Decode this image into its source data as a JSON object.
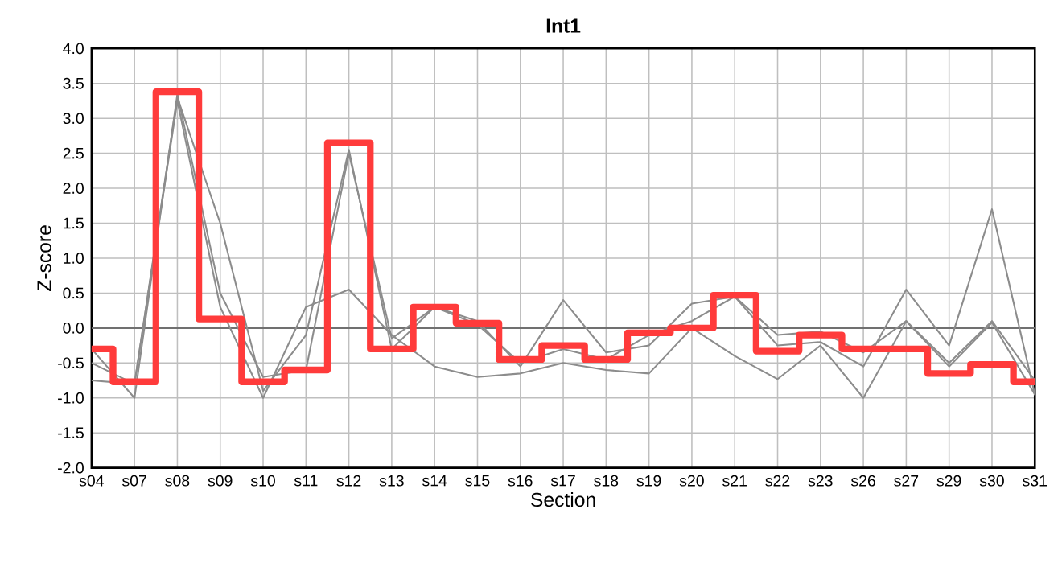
{
  "chart_data": {
    "type": "line",
    "title": "Int1",
    "xlabel": "Section",
    "ylabel": "Z-score",
    "categories": [
      "s04",
      "s07",
      "s08",
      "s09",
      "s10",
      "s11",
      "s12",
      "s13",
      "s14",
      "s15",
      "s16",
      "s17",
      "s18",
      "s19",
      "s20",
      "s21",
      "s22",
      "s23",
      "s26",
      "s27",
      "s29",
      "s30",
      "s31"
    ],
    "series": [
      {
        "color": "#8c8c8c",
        "values": [
          -0.5,
          -0.8,
          3.3,
          1.5,
          -0.9,
          -0.1,
          2.55,
          -0.3,
          0.3,
          0.1,
          -0.55,
          0.4,
          -0.35,
          -0.25,
          0.35,
          0.45,
          -0.25,
          -0.2,
          -0.55,
          0.55,
          -0.25,
          1.7,
          -0.95
        ]
      },
      {
        "color": "#8c8c8c",
        "values": [
          -0.3,
          -1.0,
          3.35,
          0.5,
          -0.7,
          -0.6,
          2.5,
          -0.15,
          0.3,
          0.05,
          -0.5,
          -0.3,
          -0.45,
          -0.1,
          0.1,
          0.45,
          -0.1,
          -0.05,
          -0.35,
          0.1,
          -0.5,
          0.1,
          -0.75
        ]
      },
      {
        "color": "#8c8c8c",
        "values": [
          -0.75,
          -0.8,
          3.25,
          0.3,
          -1.0,
          0.3,
          0.55,
          -0.1,
          -0.55,
          -0.7,
          -0.65,
          -0.5,
          -0.6,
          -0.65,
          0.0,
          -0.4,
          -0.73,
          -0.25,
          -1.0,
          0.1,
          -0.55,
          0.08,
          -0.95
        ]
      },
      {
        "type": "step",
        "color": "#ff3b3b",
        "values": [
          -0.3,
          -0.77,
          3.38,
          0.13,
          -0.77,
          -0.6,
          2.65,
          -0.3,
          0.3,
          0.07,
          -0.45,
          -0.25,
          -0.45,
          -0.07,
          0.0,
          0.47,
          -0.33,
          -0.1,
          -0.3,
          -0.3,
          -0.65,
          -0.52,
          -0.77
        ]
      }
    ],
    "ylim": [
      -2.0,
      4.0
    ],
    "yticks": [
      {
        "value": -2.0,
        "label": "-2.0"
      },
      {
        "value": -1.5,
        "label": "-1.5"
      },
      {
        "value": -1.0,
        "label": "-1.0"
      },
      {
        "value": -0.5,
        "label": "-0.5"
      },
      {
        "value": 0.0,
        "label": "0.0"
      },
      {
        "value": 0.5,
        "label": "0.5"
      },
      {
        "value": 1.0,
        "label": "1.0"
      },
      {
        "value": 1.5,
        "label": "1.5"
      },
      {
        "value": 2.0,
        "label": "2.0"
      },
      {
        "value": 2.5,
        "label": "2.5"
      },
      {
        "value": 3.0,
        "label": "3.0"
      },
      {
        "value": 3.5,
        "label": "3.5"
      },
      {
        "value": 4.0,
        "label": "4.0"
      }
    ],
    "ref_lines": [
      {
        "axis": "y",
        "value": 0.0,
        "color": "#707070"
      }
    ],
    "grid": true
  }
}
